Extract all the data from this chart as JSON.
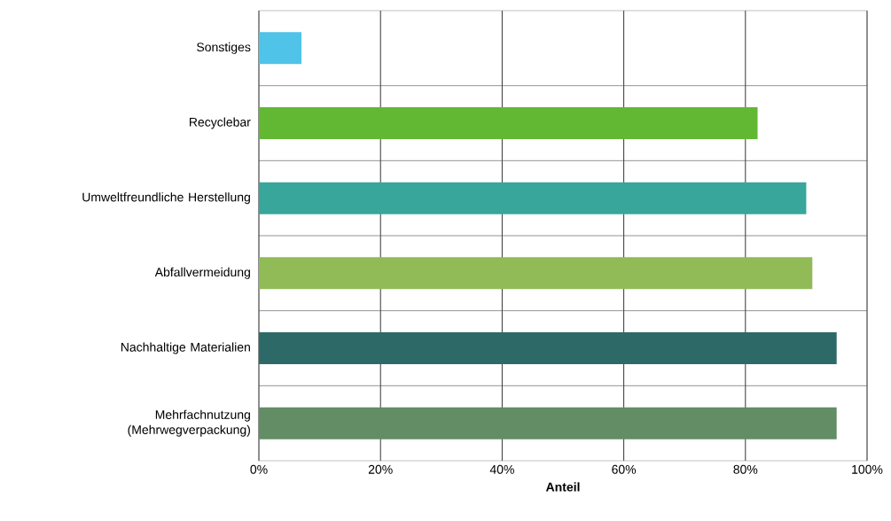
{
  "chart_data": {
    "type": "bar",
    "orientation": "horizontal",
    "xlabel": "Anteil",
    "categories": [
      "Sonstiges",
      "Recyclebar",
      "Umweltfreundliche Herstellung",
      "Abfallvermeidung",
      "Nachhaltige Materialien",
      "Mehrfachnutzung (Mehrwegverpackung)"
    ],
    "values": [
      7,
      82,
      90,
      91,
      95,
      95
    ],
    "colors": [
      "#4fc3e8",
      "#62b833",
      "#38a69b",
      "#91bb56",
      "#2d6a67",
      "#628d65"
    ],
    "xlim": [
      0,
      100
    ],
    "xticks": [
      {
        "value": 0,
        "label": "0%"
      },
      {
        "value": 20,
        "label": "20%"
      },
      {
        "value": 40,
        "label": "40%"
      },
      {
        "value": 60,
        "label": "60%"
      },
      {
        "value": 80,
        "label": "80%"
      },
      {
        "value": 100,
        "label": "100%"
      }
    ],
    "grid": true
  }
}
